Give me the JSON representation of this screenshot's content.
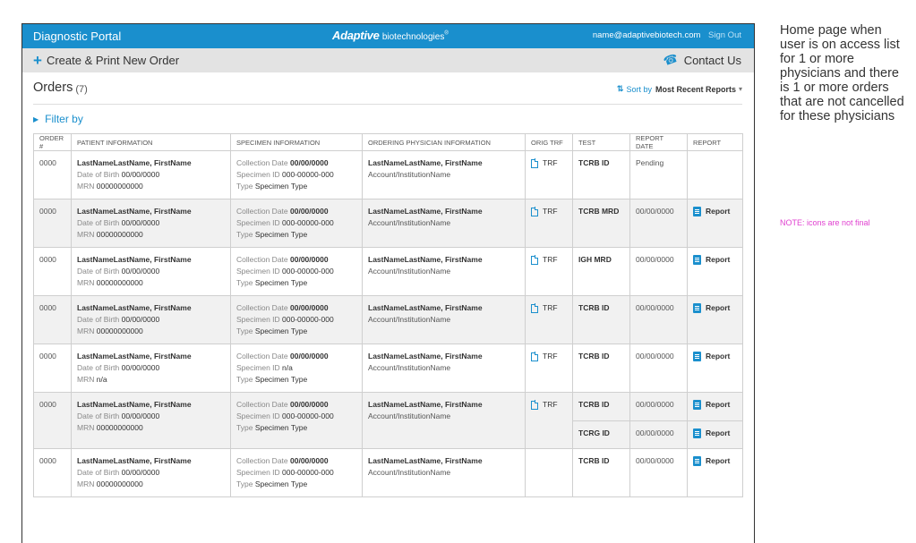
{
  "header": {
    "portal_title": "Diagnostic Portal",
    "logo_main": "Adaptive",
    "logo_sub": "biotechnologies",
    "logo_mark": "®",
    "user_email": "name@adaptivebiotech.com",
    "sign_out": "Sign Out"
  },
  "actions": {
    "create_label": "Create & Print New Order",
    "create_icon": "plus-icon",
    "contact_label": "Contact Us",
    "contact_icon": "phone-icon"
  },
  "orders": {
    "title": "Orders",
    "count": "(7)",
    "sort_label": "Sort by",
    "sort_value": "Most Recent Reports",
    "filter_label": "Filter by"
  },
  "table": {
    "columns": [
      "ORDER #",
      "PATIENT INFORMATION",
      "SPECIMEN INFORMATION",
      "ORDERING PHYSICIAN INFORMATION",
      "ORIG TRF",
      "TEST",
      "REPORT DATE",
      "REPORT"
    ],
    "labels": {
      "dob": "Date of Birth",
      "mrn": "MRN",
      "collection": "Collection Date",
      "specimen_id": "Specimen ID",
      "type": "Type",
      "trf": "TRF",
      "report": "Report"
    },
    "rows": [
      {
        "order": "0000",
        "name": "LastNameLastName, FirstName",
        "dob": "00/00/0000",
        "mrn": "00000000000",
        "collection": "00/00/0000",
        "specimen_id": "000-00000-000",
        "type": "Specimen Type",
        "physician": "LastNameLastName, FirstName",
        "account": "Account/InstitutionName",
        "tests": [
          {
            "test": "TCRB ID",
            "date": "Pending",
            "report": ""
          }
        ]
      },
      {
        "order": "0000",
        "name": "LastNameLastName, FirstName",
        "dob": "00/00/0000",
        "mrn": "00000000000",
        "collection": "00/00/0000",
        "specimen_id": "000-00000-000",
        "type": "Specimen Type",
        "physician": "LastNameLastName, FirstName",
        "account": "Account/InstitutionName",
        "tests": [
          {
            "test": "TCRB MRD",
            "date": "00/00/0000",
            "report": "Report"
          }
        ]
      },
      {
        "order": "0000",
        "name": "LastNameLastName, FirstName",
        "dob": "00/00/0000",
        "mrn": "00000000000",
        "collection": "00/00/0000",
        "specimen_id": "000-00000-000",
        "type": "Specimen Type",
        "physician": "LastNameLastName, FirstName",
        "account": "Account/InstitutionName",
        "tests": [
          {
            "test": "IGH MRD",
            "date": "00/00/0000",
            "report": "Report"
          }
        ]
      },
      {
        "order": "0000",
        "name": "LastNameLastName, FirstName",
        "dob": "00/00/0000",
        "mrn": "00000000000",
        "collection": "00/00/0000",
        "specimen_id": "000-00000-000",
        "type": "Specimen Type",
        "physician": "LastNameLastName, FirstName",
        "account": "Account/InstitutionName",
        "tests": [
          {
            "test": "TCRB ID",
            "date": "00/00/0000",
            "report": "Report"
          }
        ]
      },
      {
        "order": "0000",
        "name": "LastNameLastName, FirstName",
        "dob": "00/00/0000",
        "mrn": "n/a",
        "collection": "00/00/0000",
        "specimen_id": "n/a",
        "type": "Specimen Type",
        "physician": "LastNameLastName, FirstName",
        "account": "Account/InstitutionName",
        "tests": [
          {
            "test": "TCRB ID",
            "date": "00/00/0000",
            "report": "Report"
          }
        ]
      },
      {
        "order": "0000",
        "name": "LastNameLastName, FirstName",
        "dob": "00/00/0000",
        "mrn": "00000000000",
        "collection": "00/00/0000",
        "specimen_id": "000-00000-000",
        "type": "Specimen Type",
        "physician": "LastNameLastName, FirstName",
        "account": "Account/InstitutionName",
        "tests": [
          {
            "test": "TCRB ID",
            "date": "00/00/0000",
            "report": "Report"
          },
          {
            "test": "TCRG ID",
            "date": "00/00/0000",
            "report": "Report"
          }
        ]
      },
      {
        "order": "0000",
        "name": "LastNameLastName, FirstName",
        "dob": "00/00/0000",
        "mrn": "00000000000",
        "collection": "00/00/0000",
        "specimen_id": "000-00000-000",
        "type": "Specimen Type",
        "physician": "LastNameLastName, FirstName",
        "account": "Account/InstitutionName",
        "tests": [
          {
            "test": "TCRB ID",
            "date": "00/00/0000",
            "report": "Report"
          }
        ]
      }
    ],
    "trf_rows": [
      0,
      1,
      2,
      3,
      4,
      5
    ]
  },
  "annotations": {
    "main_note": "Home page when user is on access list for 1 or more physicians and there is 1 or more orders that are not cancelled for these physicians",
    "icons_note": "NOTE: icons are not final"
  },
  "colors": {
    "brand_blue": "#1a8fcd",
    "action_bar": "#e3e3e3",
    "alt_row": "#f1f1f1",
    "note_pink": "#e040d0"
  }
}
